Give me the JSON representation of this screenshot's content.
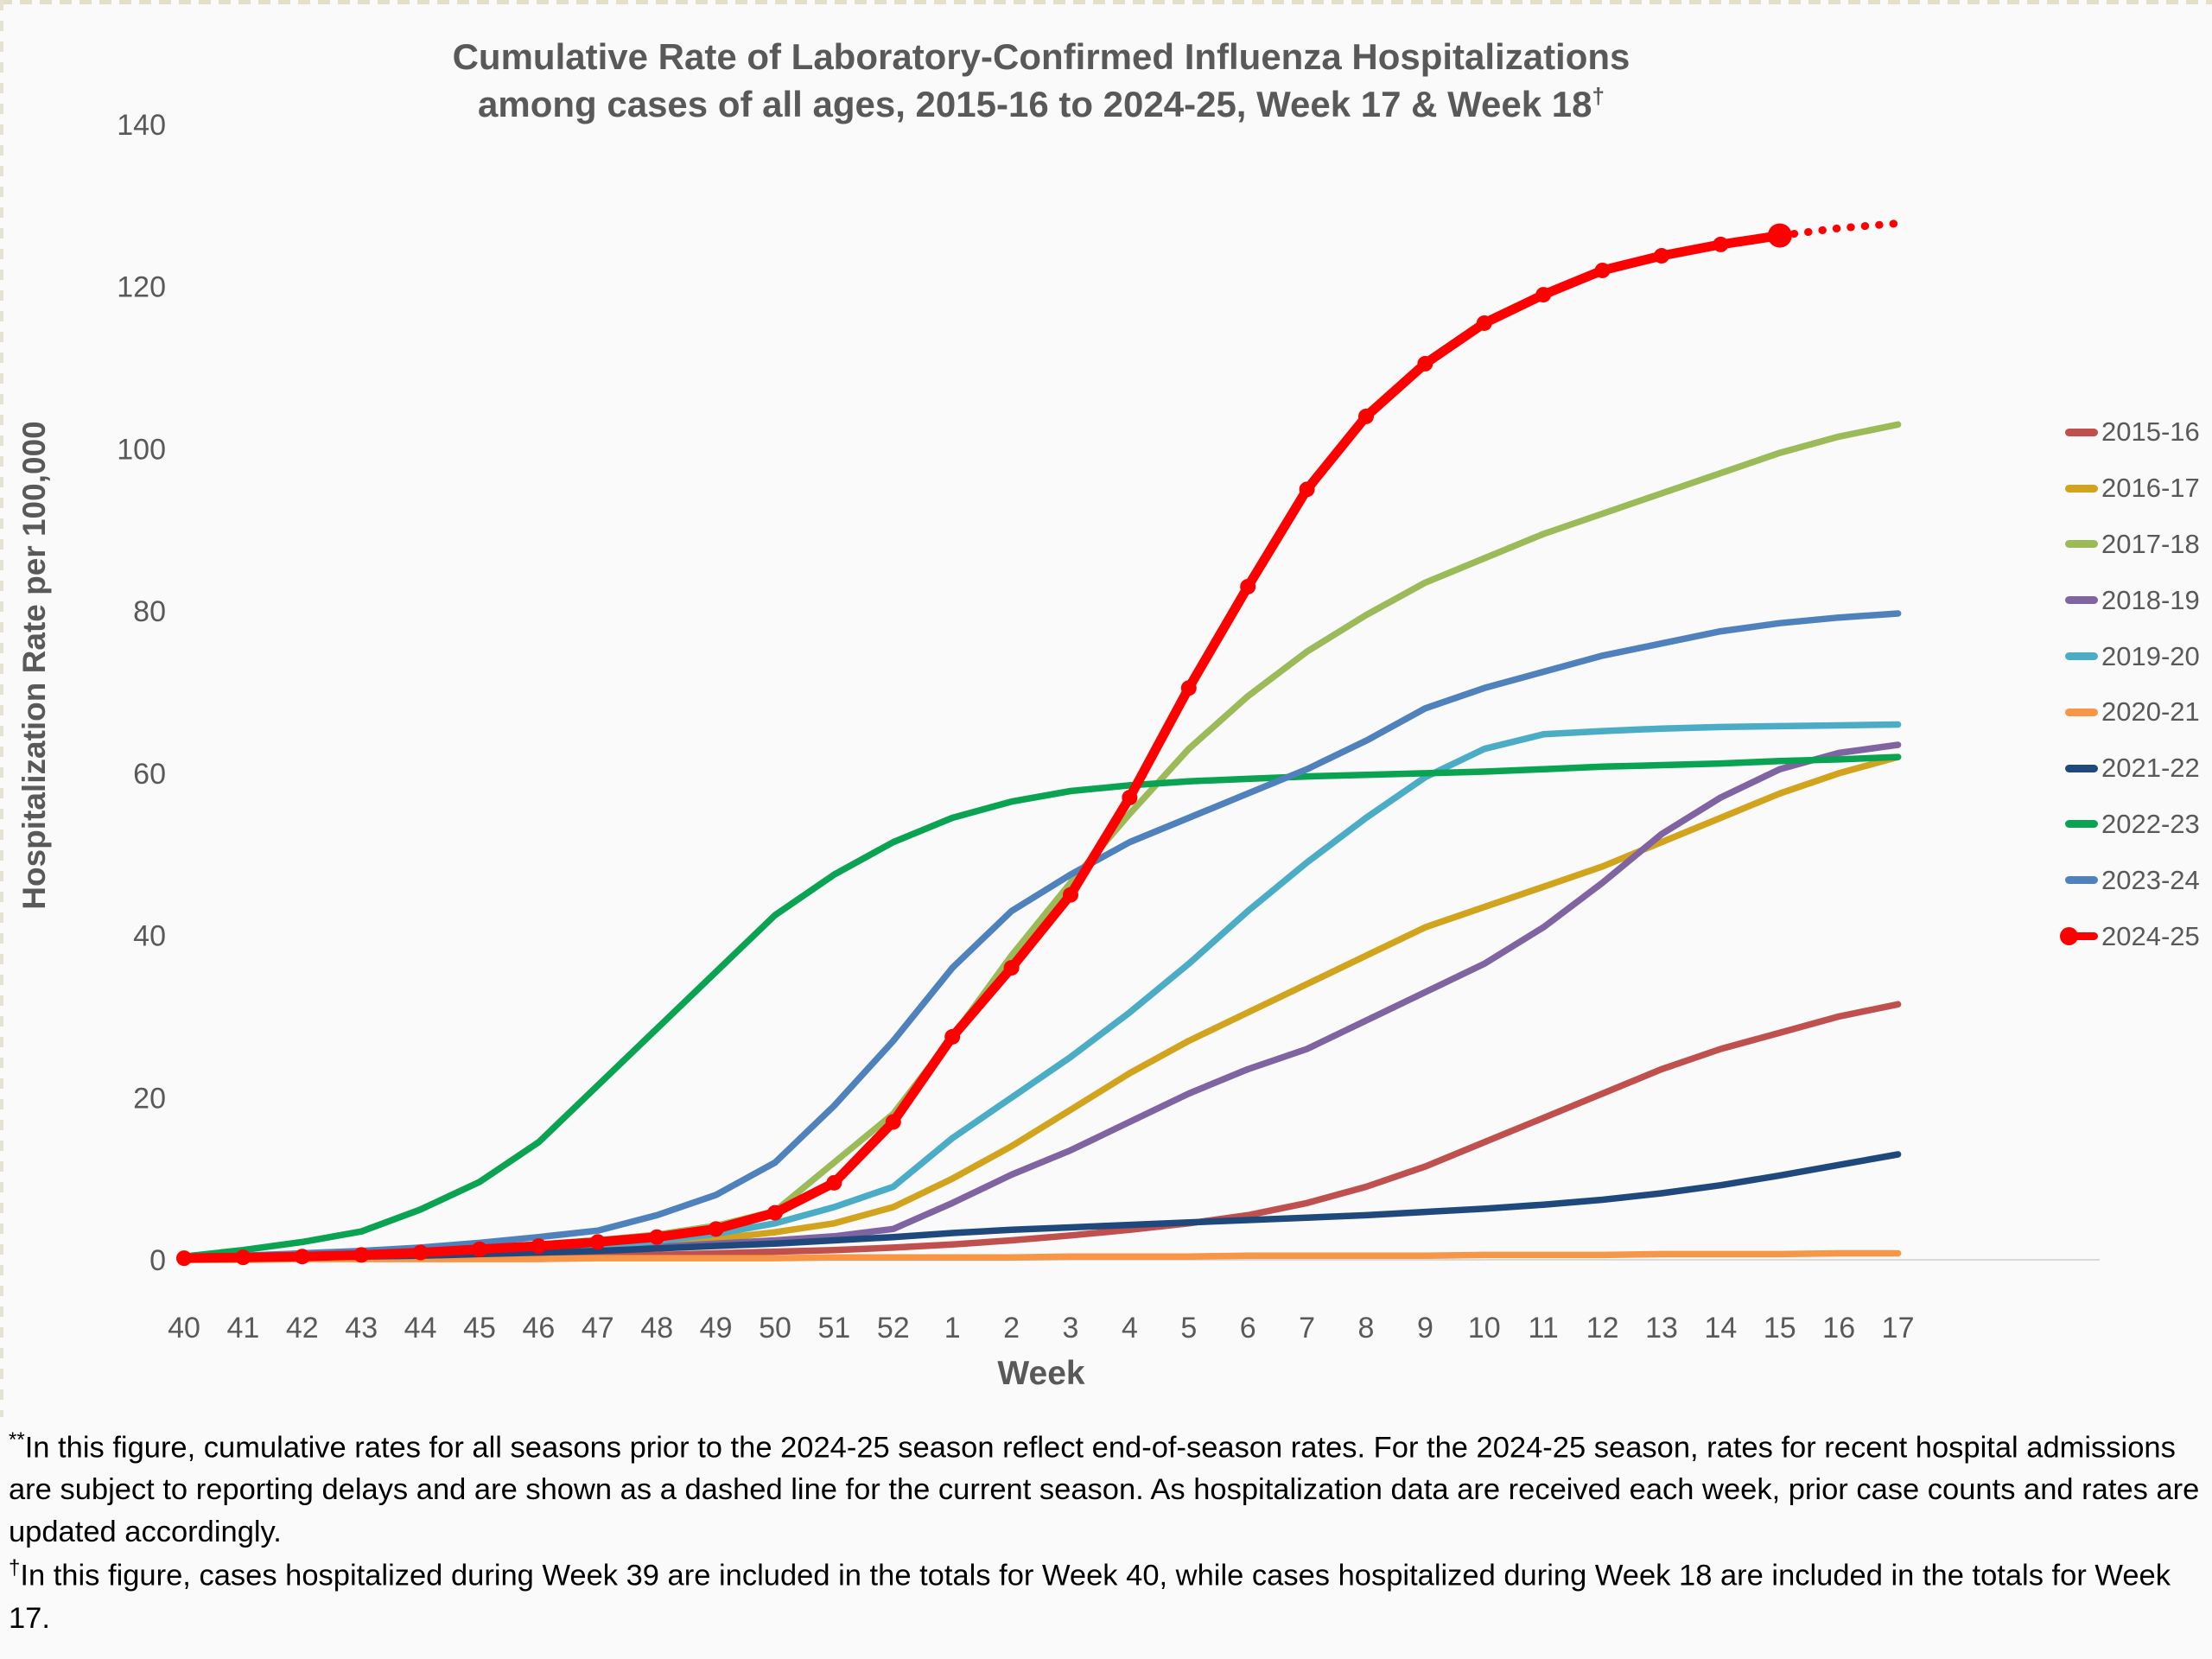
{
  "chart_data": {
    "type": "line",
    "title_line1": "Cumulative Rate of Laboratory-Confirmed Influenza Hospitalizations",
    "title_line2": "among cases of all ages, 2015-16 to 2024-25, Week 17 & Week 18",
    "title_superscript": "†",
    "xlabel": "Week",
    "ylabel": "Hospitalization Rate per 100,000",
    "ylim": [
      0,
      140
    ],
    "yticks": [
      "0",
      "20",
      "40",
      "60",
      "80",
      "100",
      "120",
      "140"
    ],
    "grid": "off",
    "legend_position": "right",
    "categories": [
      "40",
      "41",
      "42",
      "43",
      "44",
      "45",
      "46",
      "47",
      "48",
      "49",
      "50",
      "51",
      "52",
      "1",
      "2",
      "3",
      "4",
      "5",
      "6",
      "7",
      "8",
      "9",
      "10",
      "11",
      "12",
      "13",
      "14",
      "15",
      "16",
      "17"
    ],
    "series": [
      {
        "name": "2015-16",
        "color": "#C0504D",
        "values": [
          0.1,
          0.1,
          0.2,
          0.2,
          0.3,
          0.3,
          0.4,
          0.5,
          0.6,
          0.8,
          1.0,
          1.2,
          1.5,
          1.9,
          2.4,
          3.0,
          3.7,
          4.5,
          5.5,
          7.0,
          9.0,
          11.5,
          14.5,
          17.5,
          20.5,
          23.5,
          26.0,
          28.0,
          30.0,
          31.5
        ]
      },
      {
        "name": "2016-17",
        "color": "#D2A41E",
        "values": [
          0.2,
          0.3,
          0.4,
          0.5,
          0.7,
          0.9,
          1.2,
          1.5,
          2.0,
          2.6,
          3.4,
          4.5,
          6.5,
          10,
          14,
          18.5,
          23,
          27,
          30.5,
          34,
          37.5,
          41,
          43.5,
          46,
          48.5,
          51.5,
          54.5,
          57.5,
          60,
          62
        ]
      },
      {
        "name": "2017-18",
        "color": "#9BBB59",
        "values": [
          0.3,
          0.4,
          0.6,
          0.8,
          1.1,
          1.4,
          1.9,
          2.4,
          3.1,
          4.2,
          6.0,
          12.0,
          18.0,
          27.5,
          37.5,
          46.5,
          55,
          63,
          69.5,
          75,
          79.5,
          83.5,
          86.5,
          89.5,
          92,
          94.5,
          97,
          99.5,
          101.5,
          103
        ]
      },
      {
        "name": "2018-19",
        "color": "#8064A2",
        "values": [
          0.2,
          0.3,
          0.4,
          0.5,
          0.6,
          0.8,
          1.0,
          1.3,
          1.6,
          2.0,
          2.4,
          2.9,
          3.8,
          7,
          10.5,
          13.5,
          17,
          20.5,
          23.5,
          26,
          29.5,
          33,
          36.5,
          41,
          46.5,
          52.5,
          57,
          60.5,
          62.5,
          63.5
        ]
      },
      {
        "name": "2019-20",
        "color": "#4BACC6",
        "values": [
          0.2,
          0.3,
          0.4,
          0.5,
          0.7,
          1.0,
          1.3,
          1.7,
          2.3,
          3.2,
          4.5,
          6.5,
          9.0,
          15,
          20,
          25,
          30.5,
          36.5,
          43,
          49,
          54.5,
          59.5,
          63,
          64.8,
          65.2,
          65.5,
          65.7,
          65.8,
          65.9,
          66
        ]
      },
      {
        "name": "2020-21",
        "color": "#F79646",
        "values": [
          0,
          0,
          0.1,
          0.1,
          0.1,
          0.1,
          0.1,
          0.2,
          0.2,
          0.2,
          0.2,
          0.3,
          0.3,
          0.3,
          0.3,
          0.4,
          0.4,
          0.4,
          0.5,
          0.5,
          0.5,
          0.5,
          0.6,
          0.6,
          0.6,
          0.7,
          0.7,
          0.7,
          0.8,
          0.8
        ]
      },
      {
        "name": "2021-22",
        "color": "#1F497D",
        "values": [
          0.1,
          0.2,
          0.3,
          0.4,
          0.5,
          0.7,
          0.9,
          1.1,
          1.4,
          1.7,
          2.0,
          2.4,
          2.8,
          3.3,
          3.7,
          4.0,
          4.3,
          4.6,
          4.9,
          5.2,
          5.5,
          5.9,
          6.3,
          6.8,
          7.4,
          8.2,
          9.2,
          10.4,
          11.7,
          13.0
        ]
      },
      {
        "name": "2022-23",
        "color": "#09A352",
        "values": [
          0.4,
          1.2,
          2.2,
          3.5,
          6.2,
          9.6,
          14.5,
          21.5,
          28.5,
          35.5,
          42.5,
          47.5,
          51.5,
          54.5,
          56.5,
          57.8,
          58.5,
          59.0,
          59.3,
          59.6,
          59.8,
          60.0,
          60.2,
          60.5,
          60.8,
          61.0,
          61.2,
          61.5,
          61.7,
          62.0
        ]
      },
      {
        "name": "2023-24",
        "color": "#4F81BD",
        "values": [
          0.3,
          0.5,
          0.8,
          1.1,
          1.5,
          2.1,
          2.8,
          3.6,
          5.5,
          8.0,
          12.0,
          19.0,
          27.0,
          36,
          43,
          47.5,
          51.5,
          54.5,
          57.5,
          60.5,
          64,
          68,
          70.5,
          72.5,
          74.5,
          76,
          77.5,
          78.5,
          79.2,
          79.7
        ]
      },
      {
        "name": "2024-25",
        "color": "#FE0000",
        "marker": true,
        "dashed_from": 27,
        "values": [
          0.2,
          0.3,
          0.4,
          0.6,
          0.9,
          1.3,
          1.7,
          2.2,
          2.8,
          3.8,
          5.8,
          9.5,
          17.0,
          27.5,
          36,
          45,
          57,
          70.5,
          83,
          95,
          104,
          110.5,
          115.5,
          119,
          122,
          123.8,
          125.2,
          126.3,
          127.2,
          127.8
        ]
      }
    ]
  },
  "footnotes": [
    {
      "sup": "**",
      "text": "In this figure, cumulative rates for all seasons prior to the 2024-25 season reflect end-of-season rates. For the 2024-25 season, rates for recent hospital admissions are subject to reporting delays and are shown as a dashed line for the current season. As hospitalization data are received each week, prior case counts and rates are updated accordingly."
    },
    {
      "sup": "†",
      "text": "In this figure, cases hospitalized during Week 39 are included in the totals for Week 40, while cases hospitalized during Week 18 are included in the totals for Week 17."
    }
  ]
}
